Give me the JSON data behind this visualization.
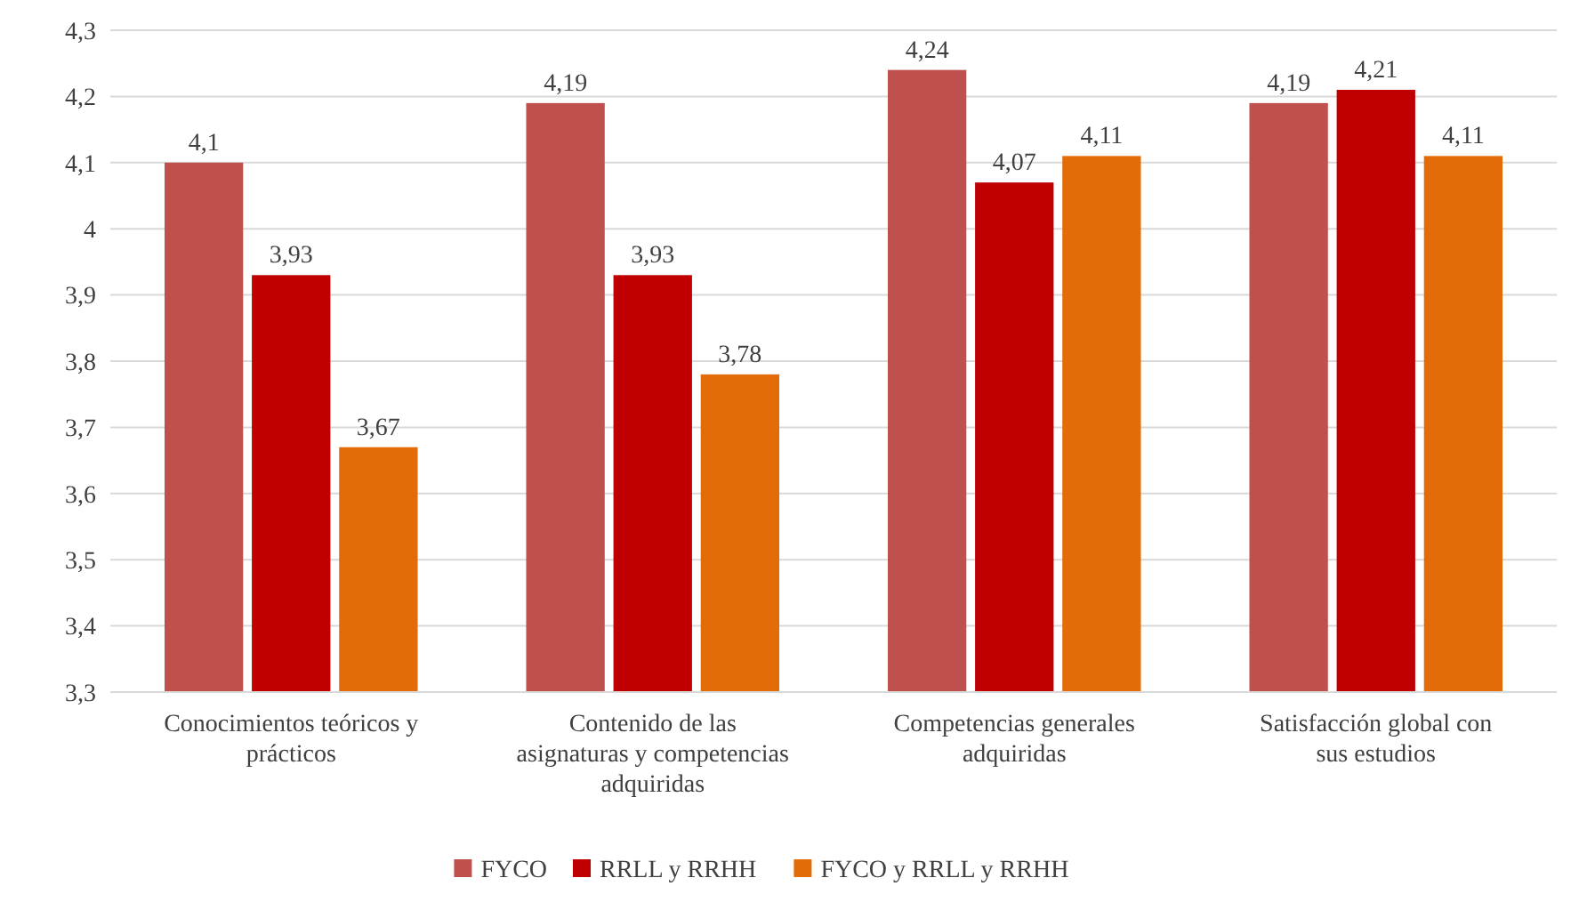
{
  "chart_data": {
    "type": "bar",
    "categories": [
      "Conocimientos teóricos y prácticos",
      "Contenido de las asignaturas y competencias adquiridas",
      "Competencias generales adquiridas",
      "Satisfacción global con sus estudios"
    ],
    "series": [
      {
        "name": "FYCO",
        "color": "#c0504d",
        "values": [
          4.1,
          4.19,
          4.24,
          4.19
        ],
        "value_labels": [
          "4,1",
          "4,19",
          "4,24",
          "4,19"
        ]
      },
      {
        "name": "RRLL y RRHH",
        "color": "#c00000",
        "values": [
          3.93,
          3.93,
          4.07,
          4.21
        ],
        "value_labels": [
          "3,93",
          "3,93",
          "4,07",
          "4,21"
        ]
      },
      {
        "name": "FYCO y RRLL y RRHH",
        "color": "#e36c09",
        "values": [
          3.67,
          3.78,
          4.11,
          4.11
        ],
        "value_labels": [
          "3,67",
          "3,78",
          "4,11",
          "4,11"
        ]
      }
    ],
    "ylim": [
      3.3,
      4.3
    ],
    "yticks": [
      {
        "value": 3.3,
        "label": "3,3"
      },
      {
        "value": 3.4,
        "label": "3,4"
      },
      {
        "value": 3.5,
        "label": "3,5"
      },
      {
        "value": 3.6,
        "label": "3,6"
      },
      {
        "value": 3.7,
        "label": "3,7"
      },
      {
        "value": 3.8,
        "label": "3,8"
      },
      {
        "value": 3.9,
        "label": "3,9"
      },
      {
        "value": 4,
        "label": "4"
      },
      {
        "value": 4.1,
        "label": "4,1"
      },
      {
        "value": 4.2,
        "label": "4,2"
      },
      {
        "value": 4.3,
        "label": "4,3"
      }
    ],
    "grid": "y",
    "legend": "bottom"
  }
}
